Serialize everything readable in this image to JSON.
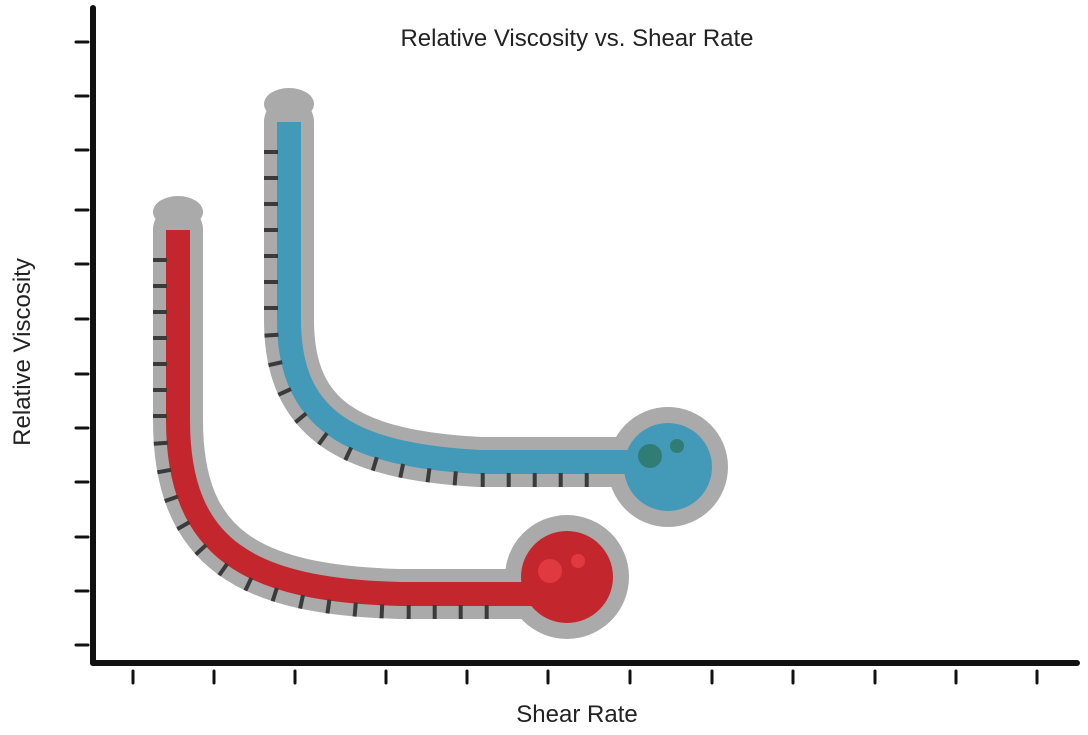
{
  "title": "Relative Viscosity vs. Shear Rate",
  "x_axis": {
    "label": "Shear Rate"
  },
  "y_axis": {
    "label": "Relative Viscosity"
  }
}
